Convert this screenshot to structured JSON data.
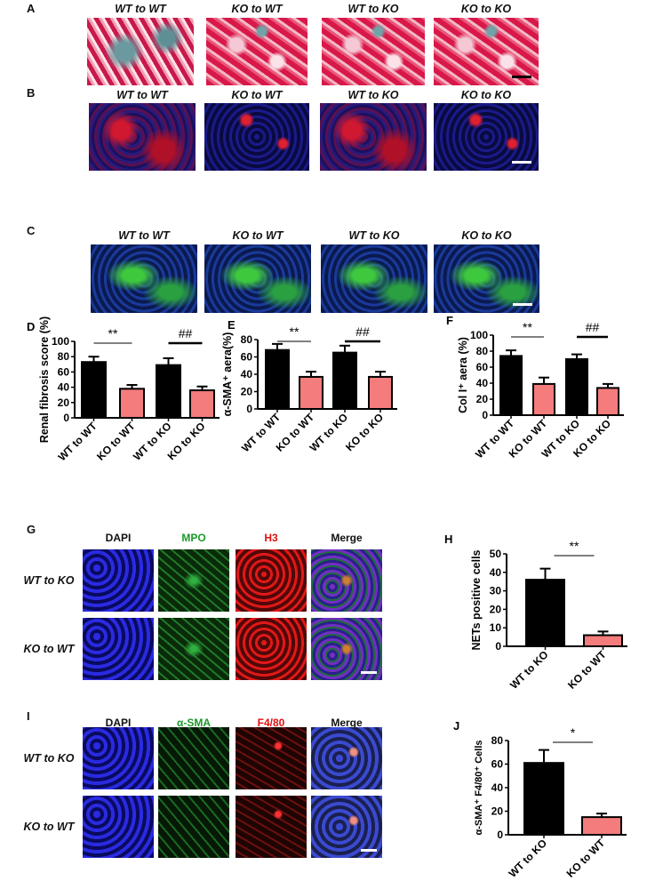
{
  "panels": {
    "A": {
      "label": "A",
      "titles": [
        "WT to WT",
        "KO to WT",
        "WT to KO",
        "KO to KO"
      ]
    },
    "B": {
      "label": "B",
      "titles": [
        "WT to WT",
        "KO to WT",
        "WT to KO",
        "KO to KO"
      ]
    },
    "C": {
      "label": "C",
      "titles": [
        "WT to WT",
        "KO to WT",
        "WT to KO",
        "KO to KO"
      ]
    },
    "G": {
      "label": "G",
      "headers": [
        "DAPI",
        "MPO",
        "H3",
        "Merge"
      ],
      "header_colors": [
        "#111111",
        "#1a9a2a",
        "#e01010",
        "#111111"
      ],
      "rows": [
        "WT to KO",
        "KO to WT"
      ]
    },
    "I": {
      "label": "I",
      "headers": [
        "DAPI",
        "α-SMA",
        "F4/80",
        "Merge"
      ],
      "header_colors": [
        "#111111",
        "#1a9a2a",
        "#e01010",
        "#111111"
      ],
      "rows": [
        "WT to KO",
        "KO to WT"
      ]
    }
  },
  "colors": {
    "wt_bar": "#000000",
    "ko_bar": "#f47c7c"
  },
  "chart_data": [
    {
      "id": "D",
      "panel_label": "D",
      "type": "bar",
      "ylabel": "Renal fibrosis score (%)",
      "ylim": [
        0,
        100
      ],
      "yticks": [
        0,
        20,
        40,
        60,
        80,
        100
      ],
      "categories": [
        "WT to WT",
        "KO to WT",
        "WT to KO",
        "KO to KO"
      ],
      "values": [
        73,
        38,
        69,
        36
      ],
      "errors": [
        7,
        5,
        9,
        5
      ],
      "significance": [
        {
          "from": 0,
          "to": 1,
          "label": "**"
        },
        {
          "from": 2,
          "to": 3,
          "label": "##"
        }
      ]
    },
    {
      "id": "E",
      "panel_label": "E",
      "type": "bar",
      "ylabel": "α-SMA⁺ aera(%)",
      "ylim": [
        0,
        80
      ],
      "yticks": [
        0,
        20,
        40,
        60,
        80
      ],
      "categories": [
        "WT to WT",
        "KO to WT",
        "WT to KO",
        "KO to KO"
      ],
      "values": [
        68,
        37,
        65,
        37
      ],
      "errors": [
        7,
        6,
        8,
        6
      ],
      "significance": [
        {
          "from": 0,
          "to": 1,
          "label": "**"
        },
        {
          "from": 2,
          "to": 3,
          "label": "##"
        }
      ]
    },
    {
      "id": "F",
      "panel_label": "F",
      "type": "bar",
      "ylabel": "Col I⁺ aera (%)",
      "ylim": [
        0,
        100
      ],
      "yticks": [
        0,
        20,
        40,
        60,
        80,
        100
      ],
      "categories": [
        "WT to WT",
        "KO to WT",
        "WT to KO",
        "KO to KO"
      ],
      "values": [
        74,
        39,
        70,
        34
      ],
      "errors": [
        7,
        8,
        6,
        5
      ],
      "significance": [
        {
          "from": 0,
          "to": 1,
          "label": "**"
        },
        {
          "from": 2,
          "to": 3,
          "label": "##"
        }
      ]
    },
    {
      "id": "H",
      "panel_label": "H",
      "type": "bar",
      "ylabel": "NETs positive cells",
      "ylim": [
        0,
        50
      ],
      "yticks": [
        0,
        10,
        20,
        30,
        40,
        50
      ],
      "categories": [
        "WT to KO",
        "KO to WT"
      ],
      "values": [
        36,
        6
      ],
      "errors": [
        6,
        2
      ],
      "significance": [
        {
          "from": 0,
          "to": 1,
          "label": "**"
        }
      ]
    },
    {
      "id": "J",
      "panel_label": "J",
      "type": "bar",
      "ylabel": "α-SMA⁺ F4/80⁺ Cells",
      "ylim": [
        0,
        80
      ],
      "yticks": [
        0,
        20,
        40,
        60,
        80
      ],
      "categories": [
        "WT to KO",
        "KO to WT"
      ],
      "values": [
        61,
        15
      ],
      "errors": [
        11,
        3
      ],
      "significance": [
        {
          "from": 0,
          "to": 1,
          "label": "*"
        }
      ]
    }
  ]
}
